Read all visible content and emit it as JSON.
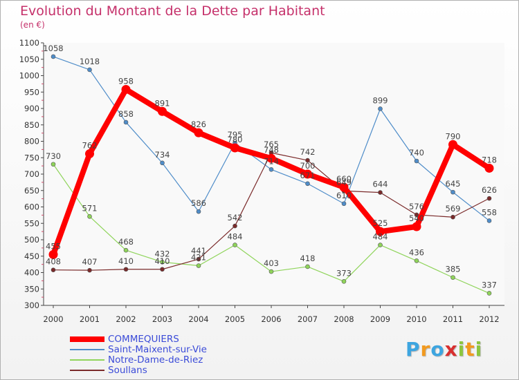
{
  "chart_data": {
    "type": "line",
    "title": "Evolution du Montant de la Dette par Habitant",
    "subtitle": "(en €)",
    "x": [
      "2000",
      "2001",
      "2002",
      "2003",
      "2004",
      "2005",
      "2006",
      "2007",
      "2008",
      "2009",
      "2010",
      "2011",
      "2012"
    ],
    "ylim": [
      300,
      1100
    ],
    "yticks": [
      300,
      350,
      400,
      450,
      500,
      550,
      600,
      650,
      700,
      750,
      800,
      850,
      900,
      950,
      1000,
      1050,
      1100
    ],
    "grid": false,
    "legend_position": "bottom-left",
    "series": [
      {
        "name": "COMMEQUIERS",
        "color": "#ff0000",
        "labels": [
          "455",
          "762",
          "958",
          "891",
          "826",
          "780",
          "748",
          "700",
          "660",
          "525",
          "540",
          "790",
          "718"
        ],
        "values": [
          455,
          762,
          958,
          891,
          826,
          780,
          748,
          700,
          660,
          525,
          540,
          790,
          718
        ]
      },
      {
        "name": "Saint-Maixent-sur-Vie",
        "color": "#4f8dc9",
        "labels": [
          "1058",
          "1018",
          "858",
          "734",
          "586",
          "795",
          "714",
          "671",
          "610",
          "899",
          "740",
          "645",
          "558"
        ],
        "values": [
          1058,
          1018,
          858,
          734,
          586,
          795,
          714,
          671,
          610,
          899,
          740,
          645,
          558
        ]
      },
      {
        "name": "Notre-Dame-de-Riez",
        "color": "#8fd45a",
        "labels": [
          "730",
          "571",
          "468",
          "432",
          "421",
          "484",
          "403",
          "418",
          "373",
          "484",
          "436",
          "385",
          "337"
        ],
        "values": [
          730,
          571,
          468,
          432,
          421,
          484,
          403,
          418,
          373,
          484,
          436,
          385,
          337
        ]
      },
      {
        "name": "Soullans",
        "color": "#7a2a2a",
        "labels": [
          "408",
          "407",
          "410",
          "410",
          "441",
          "542",
          "765",
          "742",
          "649",
          "644",
          "576",
          "569",
          "626"
        ],
        "values": [
          408,
          407,
          410,
          410,
          441,
          542,
          765,
          742,
          649,
          644,
          576,
          569,
          626
        ]
      }
    ]
  },
  "branding": {
    "letters": [
      "P",
      "r",
      "o",
      "x",
      "i",
      "t",
      "i"
    ],
    "colors": [
      "#3da5e0",
      "#f29a1f",
      "#3da5e0",
      "#d82f2f",
      "#8cc63f",
      "#f29a1f",
      "#8cc63f"
    ]
  }
}
